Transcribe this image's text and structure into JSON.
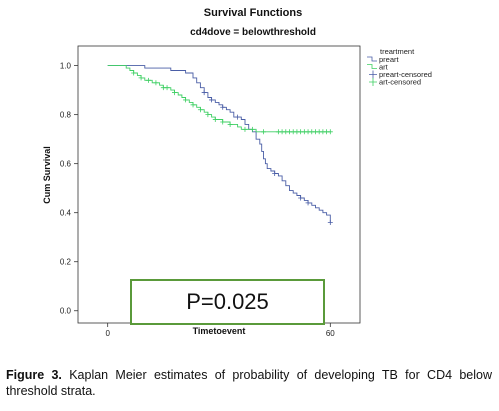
{
  "chart_data": {
    "type": "line",
    "title": "Survival Functions",
    "subtitle": "cd4dove = belowthreshold",
    "xlabel": "Timetoevent",
    "ylabel": "Cum Survival",
    "xlim": [
      -8,
      68
    ],
    "ylim": [
      -0.05,
      1.08
    ],
    "x_ticks": [
      "0",
      "60"
    ],
    "y_ticks": [
      "0.0",
      "0.2",
      "0.4",
      "0.6",
      "0.8",
      "1.0"
    ],
    "grid": false,
    "legend": {
      "title": "treartment",
      "position": "right",
      "entries": [
        "preart",
        "art",
        "preart-censored",
        "art-censored"
      ]
    },
    "series": [
      {
        "name": "preart",
        "color": "#4a5ea6",
        "steps": [
          [
            0,
            1.0
          ],
          [
            10,
            0.99
          ],
          [
            17,
            0.98
          ],
          [
            21,
            0.97
          ],
          [
            23,
            0.95
          ],
          [
            24,
            0.93
          ],
          [
            25,
            0.91
          ],
          [
            26,
            0.89
          ],
          [
            27,
            0.87
          ],
          [
            28,
            0.86
          ],
          [
            29,
            0.85
          ],
          [
            30,
            0.84
          ],
          [
            31,
            0.83
          ],
          [
            32,
            0.82
          ],
          [
            33,
            0.81
          ],
          [
            34,
            0.79
          ],
          [
            36,
            0.78
          ],
          [
            37,
            0.76
          ],
          [
            38,
            0.74
          ],
          [
            39,
            0.73
          ],
          [
            40,
            0.7
          ],
          [
            41,
            0.68
          ],
          [
            41.5,
            0.65
          ],
          [
            42,
            0.62
          ],
          [
            42.5,
            0.6
          ],
          [
            43,
            0.58
          ],
          [
            44,
            0.57
          ],
          [
            45,
            0.56
          ],
          [
            46,
            0.55
          ],
          [
            47,
            0.53
          ],
          [
            48,
            0.51
          ],
          [
            49,
            0.49
          ],
          [
            50,
            0.48
          ],
          [
            51,
            0.47
          ],
          [
            52,
            0.46
          ],
          [
            53,
            0.45
          ],
          [
            54,
            0.44
          ],
          [
            55,
            0.43
          ],
          [
            56,
            0.42
          ],
          [
            57,
            0.41
          ],
          [
            58,
            0.4
          ],
          [
            59,
            0.39
          ],
          [
            60,
            0.36
          ]
        ],
        "end": 60,
        "censored_x": [
          26,
          28,
          31,
          35,
          45,
          52,
          54,
          60
        ]
      },
      {
        "name": "art",
        "color": "#3ecf63",
        "steps": [
          [
            0,
            1.0
          ],
          [
            5,
            0.99
          ],
          [
            6,
            0.98
          ],
          [
            7,
            0.97
          ],
          [
            8,
            0.96
          ],
          [
            9,
            0.95
          ],
          [
            10,
            0.94
          ],
          [
            12,
            0.93
          ],
          [
            14,
            0.92
          ],
          [
            15,
            0.91
          ],
          [
            17,
            0.9
          ],
          [
            18,
            0.89
          ],
          [
            19,
            0.88
          ],
          [
            20,
            0.87
          ],
          [
            21,
            0.86
          ],
          [
            22,
            0.85
          ],
          [
            23,
            0.84
          ],
          [
            24,
            0.83
          ],
          [
            25,
            0.82
          ],
          [
            26,
            0.81
          ],
          [
            27,
            0.8
          ],
          [
            28,
            0.79
          ],
          [
            29,
            0.78
          ],
          [
            31,
            0.77
          ],
          [
            33,
            0.76
          ],
          [
            35,
            0.75
          ],
          [
            36,
            0.74
          ],
          [
            40,
            0.73
          ]
        ],
        "end": 60,
        "censored_x": [
          7,
          9,
          11,
          13,
          15,
          16,
          18,
          21,
          23,
          25,
          27,
          29,
          31,
          33,
          37,
          39,
          42,
          46,
          47,
          48,
          49,
          50,
          51,
          52,
          53,
          54,
          55,
          56,
          57,
          58,
          59,
          60
        ]
      }
    ]
  },
  "annotation": {
    "text": "P=0.025"
  },
  "caption": {
    "label": "Figure 3.",
    "text": "Kaplan Meier estimates of probability of developing TB for CD4 below threshold strata."
  }
}
